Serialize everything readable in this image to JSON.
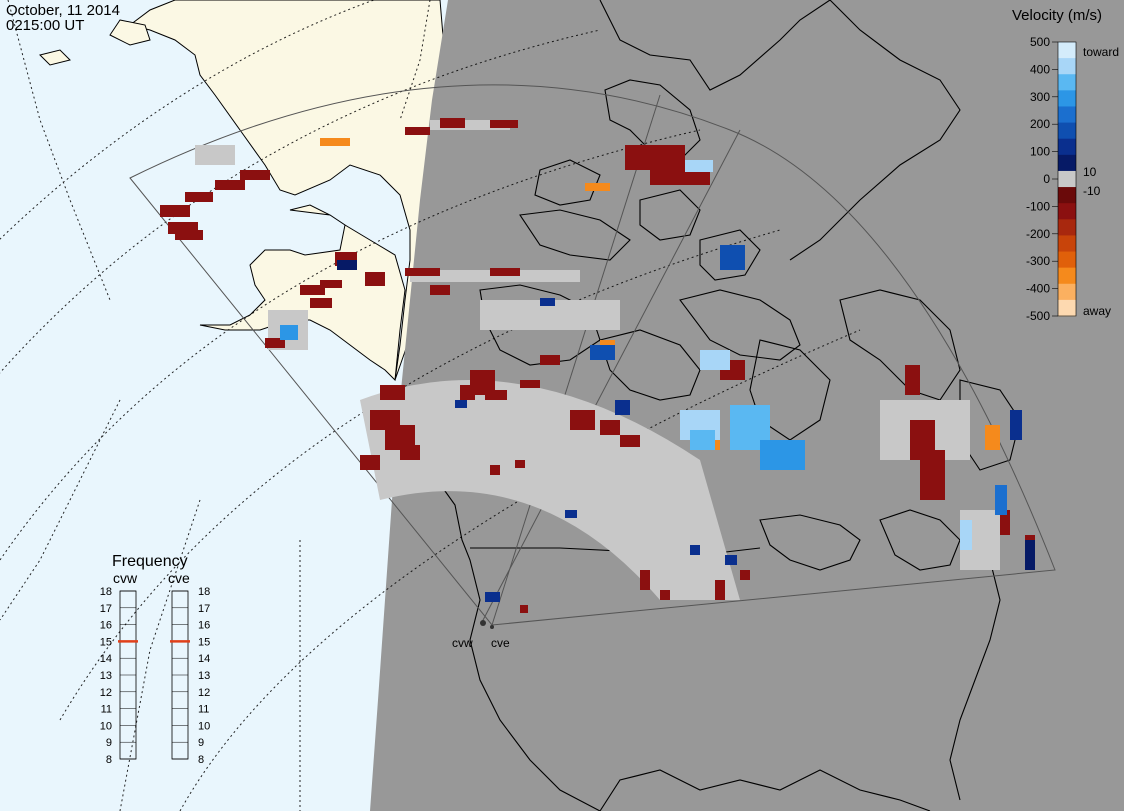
{
  "header": {
    "date": "October, 11 2014",
    "time": "0215:00 UT"
  },
  "legend": {
    "title": "Velocity (m/s)",
    "ticks": [
      "500",
      "400",
      "300",
      "200",
      "100",
      "0",
      "-100",
      "-200",
      "-300",
      "-400",
      "-500"
    ],
    "small_pos": "10",
    "small_neg": "-10",
    "toward_label": "toward",
    "away_label": "away",
    "colors": [
      "#d4ecfb",
      "#a8d6f7",
      "#5ab8f2",
      "#2c96e6",
      "#1b6fcf",
      "#0f4fb0",
      "#0a2f8e",
      "#061a66",
      "#c8c8c8",
      "#6a0a0a",
      "#8b1010",
      "#a8280e",
      "#c8440a",
      "#e0600a",
      "#f58a1c",
      "#fbb060",
      "#fdd9b0"
    ]
  },
  "frequency": {
    "title": "Frequency",
    "radars": [
      "cvw",
      "cve"
    ],
    "scale": [
      "18",
      "17",
      "16",
      "15",
      "14",
      "13",
      "12",
      "11",
      "10",
      "9",
      "8"
    ],
    "cvw_mhz": 15,
    "cve_mhz": 15
  },
  "sites": {
    "cvw_label": "cvw",
    "cve_label": "cve"
  },
  "map_colors": {
    "ocean_day": "#e9f6fd",
    "land_day": "#fbf8e4",
    "night": "#989898",
    "fov_line": "#555555",
    "gs_scatter": "#c8c8c8"
  }
}
